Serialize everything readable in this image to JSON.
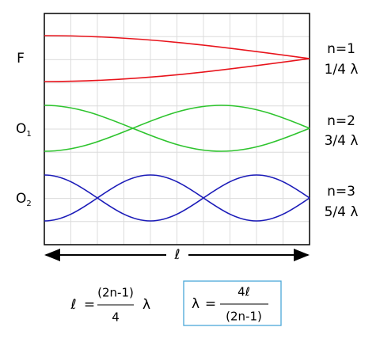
{
  "left_labels": [
    {
      "text": "F"
    },
    {
      "text": "O",
      "subscript": "1"
    },
    {
      "text": "O",
      "subscript": "2"
    }
  ],
  "right_labels": [
    {
      "mode": "n=1",
      "length": "1/4 λ"
    },
    {
      "mode": "n=2",
      "length": "3/4 λ"
    },
    {
      "mode": "n=3",
      "length": "5/4 λ"
    }
  ],
  "length_symbol": "ℓ",
  "formula_length": {
    "lhs": "ℓ",
    "equals": "=",
    "numerator": "(2n-1)",
    "denominator": "4",
    "suffix": "λ"
  },
  "formula_wavelength": {
    "lhs": "λ",
    "equals": "=",
    "numerator": "4ℓ",
    "denominator": "(2n-1)"
  }
}
